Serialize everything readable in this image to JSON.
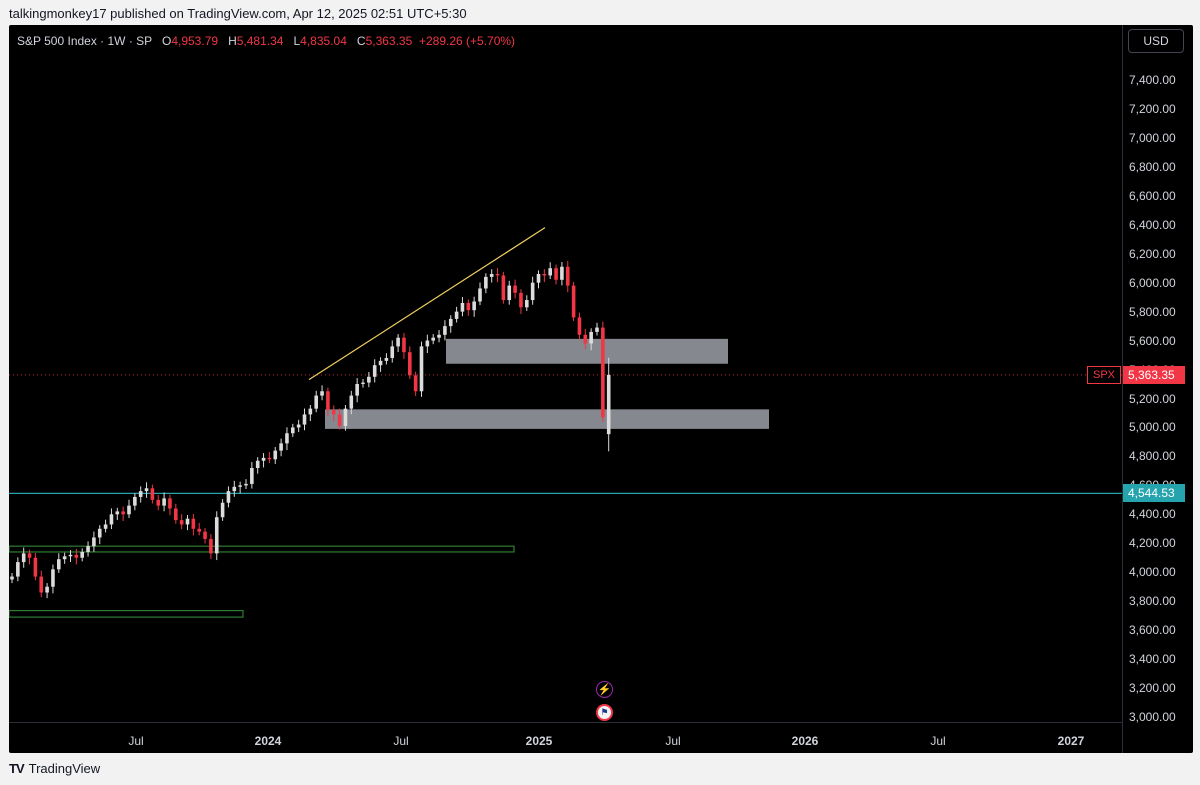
{
  "header": {
    "credit": "talkingmonkey17 published on TradingView.com, Apr 12, 2025 02:51 UTC+5:30"
  },
  "legend": {
    "symbol": "S&P 500 Index · 1W · SP",
    "o_label": "O",
    "o_value": "4,953.79",
    "h_label": "H",
    "h_value": "5,481.34",
    "l_label": "L",
    "l_value": "4,835.04",
    "c_label": "C",
    "c_value": "5,363.35",
    "change": "+289.26 (+5.70%)"
  },
  "currency": "USD",
  "badges": {
    "spx_label": "SPX",
    "last_price": "5,363.35",
    "level_price": "4,544.53"
  },
  "footer": {
    "brand": "TradingView"
  },
  "colors": {
    "up": "#dcdcdc",
    "down": "#f23645",
    "trendline": "#f0d060",
    "zone_gray": "#b2b5be",
    "zone_green": "#2e7d32",
    "level_line": "#26a4ad"
  },
  "chart_data": {
    "type": "candlestick",
    "title": "S&P 500 Index · 1W · SP",
    "interval": "1W",
    "ylim": [
      3000,
      7400
    ],
    "y_ticks": [
      "7,400.00",
      "7,200.00",
      "7,000.00",
      "6,800.00",
      "6,600.00",
      "6,400.00",
      "6,200.00",
      "6,000.00",
      "5,800.00",
      "5,600.00",
      "5,400.00",
      "5,200.00",
      "5,000.00",
      "4,800.00",
      "4,600.00",
      "4,400.00",
      "4,200.00",
      "4,000.00",
      "3,800.00",
      "3,600.00",
      "3,400.00",
      "3,200.00",
      "3,000.00"
    ],
    "x_ticks": [
      {
        "label": "Jul",
        "bold": false
      },
      {
        "label": "2024",
        "bold": true
      },
      {
        "label": "Jul",
        "bold": false
      },
      {
        "label": "2025",
        "bold": true
      },
      {
        "label": "Jul",
        "bold": false
      },
      {
        "label": "2026",
        "bold": true
      },
      {
        "label": "Jul",
        "bold": false
      },
      {
        "label": "2027",
        "bold": true
      }
    ],
    "last_ohlc": {
      "open": 4953.79,
      "high": 5481.34,
      "low": 4835.04,
      "close": 5363.35
    },
    "horizontal_level": 4544.53,
    "weekly_close_path": [
      3970,
      4070,
      4130,
      4100,
      3970,
      3860,
      3900,
      4020,
      4090,
      4110,
      4120,
      4100,
      4140,
      4180,
      4240,
      4300,
      4330,
      4400,
      4420,
      4400,
      4460,
      4520,
      4560,
      4580,
      4500,
      4460,
      4510,
      4440,
      4360,
      4330,
      4370,
      4300,
      4280,
      4230,
      4130,
      4380,
      4480,
      4560,
      4590,
      4600,
      4610,
      4720,
      4770,
      4790,
      4780,
      4840,
      4890,
      4960,
      5000,
      5020,
      5090,
      5130,
      5220,
      5250,
      5120,
      5090,
      5010,
      5130,
      5220,
      5300,
      5310,
      5350,
      5430,
      5460,
      5480,
      5560,
      5620,
      5520,
      5360,
      5250,
      5560,
      5600,
      5620,
      5640,
      5700,
      5750,
      5800,
      5860,
      5810,
      5870,
      5960,
      6040,
      6060,
      6050,
      5880,
      5980,
      5930,
      5830,
      5880,
      6000,
      6060,
      6050,
      6100,
      6020,
      6110,
      5980,
      5760,
      5640,
      5580,
      5660,
      5690,
      5070,
      5363
    ]
  }
}
